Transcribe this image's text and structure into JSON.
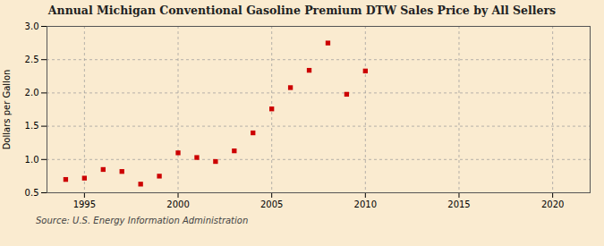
{
  "chart_data": {
    "type": "scatter",
    "title": "Annual Michigan Conventional Gasoline Premium DTW Sales Price by All Sellers",
    "ylabel": "Dollars per Gallon",
    "source": "Source: U.S. Energy Information Administration",
    "x": [
      1994,
      1995,
      1996,
      1997,
      1998,
      1999,
      2000,
      2001,
      2002,
      2003,
      2004,
      2005,
      2006,
      2007,
      2008,
      2009,
      2010
    ],
    "values": [
      0.7,
      0.72,
      0.85,
      0.82,
      0.63,
      0.75,
      1.1,
      1.03,
      0.97,
      1.13,
      1.4,
      1.76,
      2.08,
      2.34,
      2.75,
      1.98,
      2.33
    ],
    "xlim": [
      1993,
      2022
    ],
    "ylim": [
      0.5,
      3.0
    ],
    "xticks": [
      1995,
      2000,
      2005,
      2010,
      2015,
      2020
    ],
    "yticks": [
      0.5,
      {
        "value": 1.0,
        "label": "1.0"
      },
      1.5,
      {
        "value": 2.0,
        "label": "2.0"
      },
      2.5,
      {
        "value": 3.0,
        "label": "3.0"
      }
    ],
    "color": "#cc0000",
    "marker": "square",
    "grid": true
  }
}
